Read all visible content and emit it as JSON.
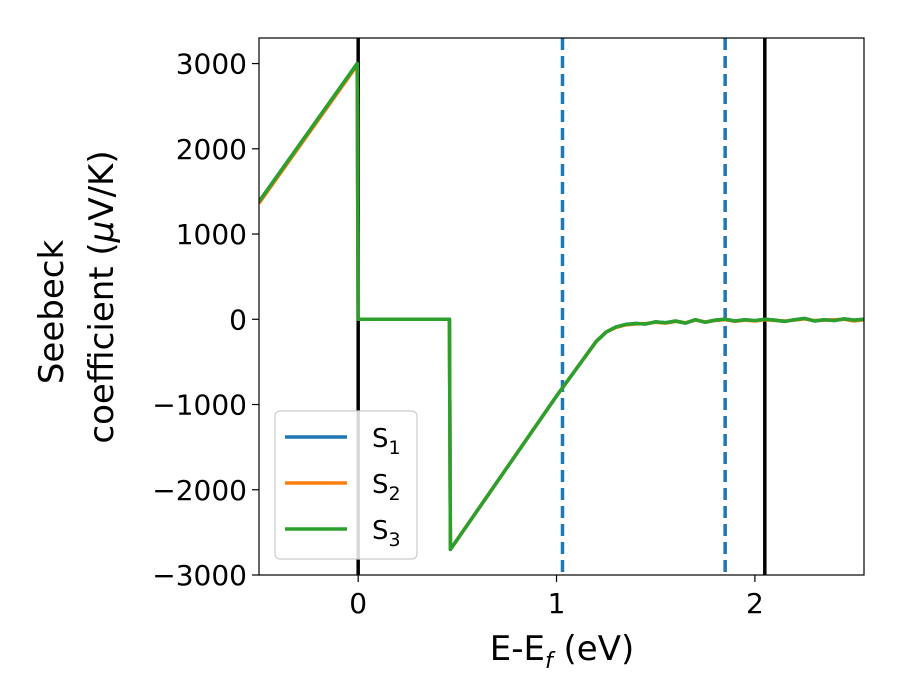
{
  "chart_data": {
    "type": "line",
    "xlabel": {
      "main": "E-E",
      "sub": "f",
      "tail": " (eV)"
    },
    "ylabel": {
      "line1": "Seebeck",
      "line2_pre": "coefficient  (",
      "mu": "μ",
      "line2_post": "V/K)"
    },
    "xlim": [
      -0.5,
      2.55
    ],
    "ylim": [
      -3000,
      3300
    ],
    "xticks": [
      0,
      1,
      2
    ],
    "xtick_labels": [
      "0",
      "1",
      "2"
    ],
    "yticks": [
      -3000,
      -2000,
      -1000,
      0,
      1000,
      2000,
      3000
    ],
    "ytick_labels": [
      "−3000",
      "−2000",
      "−1000",
      "0",
      "1000",
      "2000",
      "3000"
    ],
    "vertical_lines": [
      {
        "x": 0,
        "style": "solid",
        "color": "#000000"
      },
      {
        "x": 1.03,
        "style": "dashed",
        "color": "#1f77b4"
      },
      {
        "x": 1.85,
        "style": "dashed",
        "color": "#1f77b4"
      },
      {
        "x": 2.05,
        "style": "solid",
        "color": "#000000"
      }
    ],
    "series": [
      {
        "name": {
          "base": "S",
          "sub": "1"
        },
        "color": "#1f77b4",
        "points": [
          [
            -0.5,
            1380
          ],
          [
            -0.005,
            3000
          ],
          [
            0,
            0
          ],
          [
            0.46,
            0
          ],
          [
            0.465,
            -2700
          ],
          [
            1.0,
            -900
          ],
          [
            1.1,
            -580
          ],
          [
            1.2,
            -260
          ],
          [
            1.25,
            -150
          ],
          [
            1.3,
            -90
          ],
          [
            1.35,
            -60
          ],
          [
            1.4,
            -50
          ],
          [
            1.45,
            -55
          ],
          [
            1.5,
            -30
          ],
          [
            1.55,
            -40
          ],
          [
            1.6,
            -20
          ],
          [
            1.65,
            -45
          ],
          [
            1.7,
            -5
          ],
          [
            1.75,
            -35
          ],
          [
            1.8,
            -10
          ],
          [
            1.85,
            0
          ],
          [
            1.9,
            -20
          ],
          [
            1.95,
            -5
          ],
          [
            2.0,
            -15
          ],
          [
            2.05,
            0
          ],
          [
            2.1,
            -10
          ],
          [
            2.15,
            -25
          ],
          [
            2.2,
            -5
          ],
          [
            2.25,
            10
          ],
          [
            2.3,
            -20
          ],
          [
            2.35,
            -5
          ],
          [
            2.4,
            -15
          ],
          [
            2.45,
            5
          ],
          [
            2.5,
            -10
          ],
          [
            2.55,
            0
          ]
        ]
      },
      {
        "name": {
          "base": "S",
          "sub": "2"
        },
        "color": "#ff7f0e",
        "points": [
          [
            -0.5,
            1360
          ],
          [
            -0.005,
            2980
          ],
          [
            0,
            0
          ],
          [
            0.46,
            0
          ],
          [
            0.465,
            -2700
          ],
          [
            1.0,
            -900
          ],
          [
            1.1,
            -580
          ],
          [
            1.2,
            -260
          ],
          [
            1.25,
            -150
          ],
          [
            1.3,
            -95
          ],
          [
            1.35,
            -65
          ],
          [
            1.4,
            -55
          ],
          [
            1.45,
            -50
          ],
          [
            1.5,
            -35
          ],
          [
            1.55,
            -45
          ],
          [
            1.6,
            -25
          ],
          [
            1.65,
            -40
          ],
          [
            1.7,
            -10
          ],
          [
            1.75,
            -30
          ],
          [
            1.8,
            -15
          ],
          [
            1.85,
            -5
          ],
          [
            1.9,
            -25
          ],
          [
            1.95,
            -10
          ],
          [
            2.0,
            -20
          ],
          [
            2.05,
            -5
          ],
          [
            2.1,
            -15
          ],
          [
            2.15,
            -20
          ],
          [
            2.2,
            -10
          ],
          [
            2.25,
            5
          ],
          [
            2.3,
            -15
          ],
          [
            2.35,
            -10
          ],
          [
            2.4,
            -5
          ],
          [
            2.45,
            0
          ],
          [
            2.5,
            -20
          ],
          [
            2.55,
            -5
          ]
        ]
      },
      {
        "name": {
          "base": "S",
          "sub": "3"
        },
        "color": "#2ca02c",
        "points": [
          [
            -0.5,
            1380
          ],
          [
            -0.005,
            3000
          ],
          [
            0,
            0
          ],
          [
            0.46,
            0
          ],
          [
            0.465,
            -2700
          ],
          [
            1.0,
            -900
          ],
          [
            1.1,
            -580
          ],
          [
            1.2,
            -260
          ],
          [
            1.25,
            -150
          ],
          [
            1.3,
            -90
          ],
          [
            1.35,
            -60
          ],
          [
            1.4,
            -50
          ],
          [
            1.45,
            -55
          ],
          [
            1.5,
            -30
          ],
          [
            1.55,
            -40
          ],
          [
            1.6,
            -20
          ],
          [
            1.65,
            -45
          ],
          [
            1.7,
            -5
          ],
          [
            1.75,
            -35
          ],
          [
            1.8,
            -10
          ],
          [
            1.85,
            0
          ],
          [
            1.9,
            -20
          ],
          [
            1.95,
            -5
          ],
          [
            2.0,
            -15
          ],
          [
            2.05,
            0
          ],
          [
            2.1,
            -10
          ],
          [
            2.15,
            -25
          ],
          [
            2.2,
            -5
          ],
          [
            2.25,
            10
          ],
          [
            2.3,
            -20
          ],
          [
            2.35,
            -5
          ],
          [
            2.4,
            -15
          ],
          [
            2.45,
            5
          ],
          [
            2.5,
            -10
          ],
          [
            2.55,
            0
          ]
        ]
      }
    ],
    "legend": {
      "position": "lower-left"
    }
  }
}
